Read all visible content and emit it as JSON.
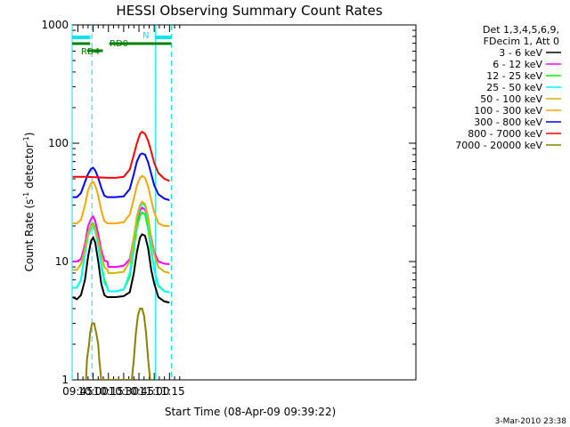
{
  "chart_data": {
    "type": "line",
    "title": "HESSI Observing Summary Count Rates",
    "xlabel": "Start Time (08-Apr-09 09:39:22)",
    "ylabel": "Count Rate (s",
    "ylabel_sup1": "-1",
    "ylabel_mid": " detector",
    "ylabel_sup2": "-1",
    "ylabel_end": ")",
    "yscale": "log",
    "ylim": [
      1,
      1000
    ],
    "yticks": [
      1,
      10,
      100,
      1000
    ],
    "ytick_labels": [
      "1",
      "10",
      "100",
      "1000"
    ],
    "xlim_minutes": [
      579.37,
      917.0
    ],
    "xticks_minutes": [
      585,
      600,
      615,
      630,
      645,
      660,
      675
    ],
    "xtick_labels": [
      "09:45",
      "10:00",
      "10:15",
      "10:30",
      "10:45",
      "11:00",
      "11:15"
    ],
    "timestamp": "3-Mar-2010 23:38",
    "legend_position": "right",
    "legend_header": [
      "Det 1,3,4,5,6,9,",
      "FDecim 1, Att 0"
    ],
    "series": [
      {
        "name": "3 - 6 keV",
        "color": "#000000",
        "points": [
          [
            580,
            5
          ],
          [
            584,
            4.8
          ],
          [
            588,
            5.2
          ],
          [
            592,
            7
          ],
          [
            595,
            11
          ],
          [
            598,
            15
          ],
          [
            600,
            16
          ],
          [
            602,
            14.5
          ],
          [
            605,
            10
          ],
          [
            608,
            6.5
          ],
          [
            611,
            5.2
          ],
          [
            614,
            5
          ],
          [
            615,
            5
          ],
          [
            622,
            5
          ],
          [
            630,
            5.1
          ],
          [
            636,
            5.5
          ],
          [
            640,
            8
          ],
          [
            643,
            12
          ],
          [
            646,
            16
          ],
          [
            648,
            17
          ],
          [
            651,
            16.5
          ],
          [
            654,
            13
          ],
          [
            657,
            8.5
          ],
          [
            660,
            6.5
          ],
          [
            664,
            5
          ],
          [
            670,
            4.6
          ],
          [
            675,
            4.5
          ]
        ]
      },
      {
        "name": "6 - 12 keV",
        "color": "#ff00ff",
        "points": [
          [
            580,
            10
          ],
          [
            584,
            10
          ],
          [
            588,
            10.5
          ],
          [
            592,
            14
          ],
          [
            595,
            20
          ],
          [
            598,
            23
          ],
          [
            600,
            24
          ],
          [
            602,
            22
          ],
          [
            605,
            17
          ],
          [
            608,
            12.5
          ],
          [
            611,
            10.2
          ],
          [
            614,
            10
          ],
          [
            615,
            9
          ],
          [
            622,
            9
          ],
          [
            630,
            9.2
          ],
          [
            636,
            10.5
          ],
          [
            640,
            16
          ],
          [
            643,
            22
          ],
          [
            646,
            27
          ],
          [
            648,
            28.5
          ],
          [
            651,
            27.5
          ],
          [
            654,
            22
          ],
          [
            657,
            16
          ],
          [
            660,
            12
          ],
          [
            664,
            10
          ],
          [
            670,
            9.6
          ],
          [
            675,
            9.5
          ]
        ]
      },
      {
        "name": "12 - 25 keV",
        "color": "#00ff00",
        "points": [
          [
            580,
            6
          ],
          [
            584,
            6
          ],
          [
            588,
            7
          ],
          [
            592,
            12
          ],
          [
            595,
            17.5
          ],
          [
            598,
            20.5
          ],
          [
            600,
            21
          ],
          [
            602,
            19.5
          ],
          [
            605,
            14.5
          ],
          [
            608,
            9.5
          ],
          [
            611,
            7
          ],
          [
            614,
            6
          ],
          [
            615,
            5.6
          ],
          [
            622,
            5.6
          ],
          [
            630,
            5.8
          ],
          [
            636,
            7.5
          ],
          [
            640,
            13
          ],
          [
            643,
            19.5
          ],
          [
            646,
            24.5
          ],
          [
            648,
            26
          ],
          [
            651,
            25
          ],
          [
            654,
            19
          ],
          [
            657,
            12
          ],
          [
            660,
            8.5
          ],
          [
            664,
            6.2
          ],
          [
            670,
            5.6
          ],
          [
            675,
            5.5
          ]
        ]
      },
      {
        "name": "25 - 50 keV",
        "color": "#00ffff",
        "points": [
          [
            580,
            6
          ],
          [
            584,
            6
          ],
          [
            588,
            7
          ],
          [
            592,
            11.5
          ],
          [
            595,
            16.5
          ],
          [
            598,
            19
          ],
          [
            600,
            19.5
          ],
          [
            602,
            18
          ],
          [
            605,
            13.5
          ],
          [
            608,
            9
          ],
          [
            611,
            6.5
          ],
          [
            614,
            6
          ],
          [
            615,
            5.6
          ],
          [
            622,
            5.6
          ],
          [
            630,
            5.8
          ],
          [
            636,
            8
          ],
          [
            640,
            15
          ],
          [
            643,
            23
          ],
          [
            646,
            29
          ],
          [
            648,
            31
          ],
          [
            651,
            29.5
          ],
          [
            654,
            22
          ],
          [
            657,
            13
          ],
          [
            660,
            8.5
          ],
          [
            664,
            6.3
          ],
          [
            670,
            5.6
          ],
          [
            675,
            5.5
          ]
        ]
      },
      {
        "name": "50 - 100 keV",
        "color": "#d2b400",
        "points": [
          [
            580,
            8.5
          ],
          [
            584,
            8.5
          ],
          [
            588,
            9.5
          ],
          [
            592,
            13
          ],
          [
            595,
            17.5
          ],
          [
            598,
            20
          ],
          [
            600,
            20.5
          ],
          [
            602,
            19
          ],
          [
            605,
            15
          ],
          [
            608,
            11.5
          ],
          [
            611,
            9
          ],
          [
            614,
            8.5
          ],
          [
            615,
            8
          ],
          [
            622,
            8
          ],
          [
            630,
            8.2
          ],
          [
            636,
            10
          ],
          [
            640,
            16
          ],
          [
            643,
            24
          ],
          [
            646,
            30
          ],
          [
            648,
            32
          ],
          [
            651,
            30.5
          ],
          [
            654,
            24
          ],
          [
            657,
            15.5
          ],
          [
            660,
            11.5
          ],
          [
            664,
            9
          ],
          [
            670,
            8.2
          ],
          [
            675,
            8
          ]
        ]
      },
      {
        "name": "100 - 300 keV",
        "color": "#ffa500",
        "points": [
          [
            580,
            21
          ],
          [
            584,
            21
          ],
          [
            588,
            22.5
          ],
          [
            592,
            30
          ],
          [
            595,
            40
          ],
          [
            598,
            46
          ],
          [
            600,
            47
          ],
          [
            602,
            44
          ],
          [
            605,
            36
          ],
          [
            608,
            27
          ],
          [
            611,
            22
          ],
          [
            614,
            21
          ],
          [
            615,
            21
          ],
          [
            622,
            21
          ],
          [
            630,
            21.5
          ],
          [
            636,
            25
          ],
          [
            640,
            34
          ],
          [
            643,
            44
          ],
          [
            646,
            51
          ],
          [
            648,
            53
          ],
          [
            651,
            51
          ],
          [
            654,
            43
          ],
          [
            657,
            33
          ],
          [
            660,
            26
          ],
          [
            664,
            21
          ],
          [
            670,
            20
          ],
          [
            675,
            20
          ]
        ]
      },
      {
        "name": "300 - 800 keV",
        "color": "#0000ff",
        "points": [
          [
            580,
            35
          ],
          [
            584,
            35
          ],
          [
            588,
            38
          ],
          [
            592,
            47
          ],
          [
            595,
            55
          ],
          [
            598,
            61
          ],
          [
            600,
            62
          ],
          [
            602,
            59
          ],
          [
            605,
            51
          ],
          [
            608,
            42
          ],
          [
            611,
            36
          ],
          [
            614,
            35
          ],
          [
            615,
            35
          ],
          [
            622,
            35
          ],
          [
            630,
            35.5
          ],
          [
            636,
            41
          ],
          [
            640,
            55
          ],
          [
            643,
            70
          ],
          [
            646,
            80
          ],
          [
            648,
            82
          ],
          [
            651,
            80
          ],
          [
            654,
            69
          ],
          [
            657,
            55
          ],
          [
            660,
            44
          ],
          [
            664,
            37
          ],
          [
            670,
            34
          ],
          [
            675,
            33
          ]
        ]
      },
      {
        "name": "800 - 7000 keV",
        "color": "#ff0000",
        "points": [
          [
            580,
            52
          ],
          [
            590,
            52
          ],
          [
            592,
            52
          ],
          [
            615,
            51
          ],
          [
            622,
            51
          ],
          [
            630,
            52
          ],
          [
            636,
            60
          ],
          [
            640,
            80
          ],
          [
            643,
            100
          ],
          [
            646,
            120
          ],
          [
            648,
            125
          ],
          [
            651,
            120
          ],
          [
            654,
            105
          ],
          [
            657,
            85
          ],
          [
            660,
            68
          ],
          [
            664,
            56
          ],
          [
            670,
            50
          ],
          [
            675,
            48
          ]
        ]
      },
      {
        "name": "7000 - 20000 keV",
        "color": "#8b8000",
        "points": [
          [
            593,
            1
          ],
          [
            594,
            1.5
          ],
          [
            596,
            2
          ],
          [
            597,
            2.5
          ],
          [
            599,
            3
          ],
          [
            601,
            3
          ],
          [
            603,
            2.5
          ],
          [
            605,
            2
          ],
          [
            606,
            1.5
          ],
          [
            608,
            1
          ],
          [
            638,
            1
          ],
          [
            640,
            1.5
          ],
          [
            642,
            2.5
          ],
          [
            644,
            3.5
          ],
          [
            646,
            4
          ],
          [
            648,
            4
          ],
          [
            650,
            3.5
          ],
          [
            652,
            2.5
          ],
          [
            654,
            1.5
          ],
          [
            656,
            1
          ]
        ]
      }
    ],
    "annotations": {
      "saa_label": "N",
      "rd0_label": "RD0",
      "rd4_label": "RD4",
      "vertical_solid_minutes": [
        579.37,
        661.3
      ],
      "vertical_dashed_minutes": [
        598.8,
        676.8
      ],
      "bar_cyan_minutes": [
        [
          579.37,
          597.0
        ],
        [
          661.3,
          676.8
        ]
      ],
      "bar_green_top_minutes": [
        [
          579.37,
          597.0
        ],
        [
          615.8,
          676.8
        ]
      ],
      "bar_green_low_minutes": [
        [
          594.0,
          609.5
        ]
      ]
    }
  }
}
